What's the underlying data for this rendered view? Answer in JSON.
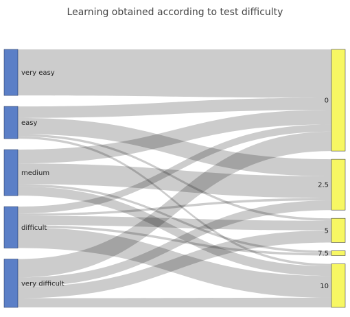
{
  "chart_data": {
    "type": "sankey",
    "title": "Learning obtained according to test difficulty",
    "sources": [
      {
        "name": "very easy",
        "color": "#5b7fc7"
      },
      {
        "name": "easy",
        "color": "#5b7fc7"
      },
      {
        "name": "medium",
        "color": "#5b7fc7"
      },
      {
        "name": "difficult",
        "color": "#5b7fc7"
      },
      {
        "name": "very difficult",
        "color": "#5b7fc7"
      }
    ],
    "targets": [
      {
        "name": "0",
        "color": "#f7f763"
      },
      {
        "name": "2.5",
        "color": "#f7f763"
      },
      {
        "name": "5",
        "color": "#f7f763"
      },
      {
        "name": "7.5",
        "color": "#f7f763"
      },
      {
        "name": "10",
        "color": "#f7f763"
      }
    ],
    "links": [
      {
        "source": "very easy",
        "target": "0",
        "value": 10
      },
      {
        "source": "easy",
        "target": "0",
        "value": 2.5
      },
      {
        "source": "easy",
        "target": "2.5",
        "value": 3.5
      },
      {
        "source": "easy",
        "target": "5",
        "value": 0.5
      },
      {
        "source": "easy",
        "target": "10",
        "value": 0.5
      },
      {
        "source": "medium",
        "target": "0",
        "value": 3
      },
      {
        "source": "medium",
        "target": "2.5",
        "value": 4.5
      },
      {
        "source": "medium",
        "target": "7.5",
        "value": 0.5
      },
      {
        "source": "medium",
        "target": "10",
        "value": 2
      },
      {
        "source": "difficult",
        "target": "0",
        "value": 1.5
      },
      {
        "source": "difficult",
        "target": "2.5",
        "value": 0.5
      },
      {
        "source": "difficult",
        "target": "5",
        "value": 2
      },
      {
        "source": "difficult",
        "target": "7.5",
        "value": 0.5
      },
      {
        "source": "difficult",
        "target": "10",
        "value": 4.5
      },
      {
        "source": "very difficult",
        "target": "0",
        "value": 4
      },
      {
        "source": "very difficult",
        "target": "2.5",
        "value": 2
      },
      {
        "source": "very difficult",
        "target": "5",
        "value": 2.5
      },
      {
        "source": "very difficult",
        "target": "10",
        "value": 2
      }
    ],
    "link_color": "#000000"
  }
}
